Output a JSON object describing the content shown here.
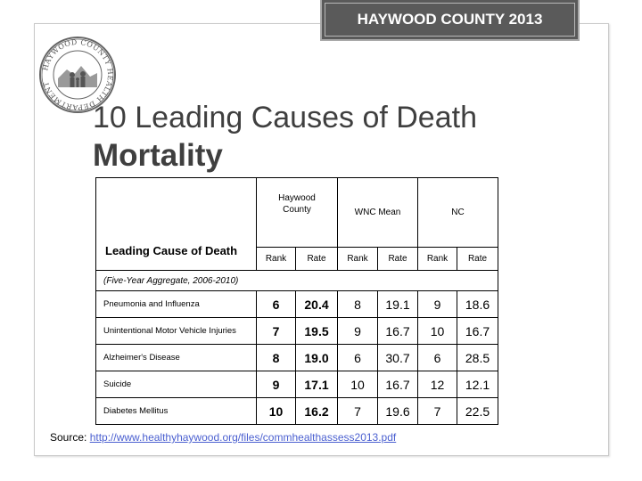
{
  "header": {
    "title": "HAYWOOD COUNTY  2013"
  },
  "seal": {
    "text": "HAYWOOD COUNTY HEALTH DEPARTMENT"
  },
  "slide": {
    "title_line1": "10 Leading Causes of Death",
    "title_line2": "Mortality"
  },
  "table": {
    "cause_header": "Leading Cause of Death",
    "groups": [
      "Haywood County",
      "WNC Mean",
      "NC"
    ],
    "subheaders": [
      "Rank",
      "Rate",
      "Rank",
      "Rate",
      "Rank",
      "Rate"
    ],
    "note": "(Five-Year Aggregate, 2006-2010)",
    "rows": [
      {
        "cause": "Pneumonia and Influenza",
        "values": [
          "6",
          "20.4",
          "8",
          "19.1",
          "9",
          "18.6"
        ]
      },
      {
        "cause": "Unintentional Motor Vehicle Injuries",
        "values": [
          "7",
          "19.5",
          "9",
          "16.7",
          "10",
          "16.7"
        ]
      },
      {
        "cause": "Alzheimer's Disease",
        "values": [
          "8",
          "19.0",
          "6",
          "30.7",
          "6",
          "28.5"
        ]
      },
      {
        "cause": "Suicide",
        "values": [
          "9",
          "17.1",
          "10",
          "16.7",
          "12",
          "12.1"
        ]
      },
      {
        "cause": "Diabetes Mellitus",
        "values": [
          "10",
          "16.2",
          "7",
          "19.6",
          "7",
          "22.5"
        ]
      }
    ]
  },
  "source": {
    "label": "Source: ",
    "url": "http://www.healthyhaywood.org/files/commhealthassess2013.pdf"
  },
  "colors": {
    "header_bg": "#5a5a5a",
    "title_text": "#3f3f3f",
    "link": "#4a5fd0"
  }
}
